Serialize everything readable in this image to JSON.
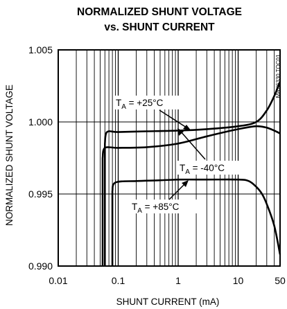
{
  "chart_data": {
    "type": "line",
    "title_line1": "NORMALIZED SHUNT VOLTAGE",
    "title_line2": "vs. SHUNT CURRENT",
    "xlabel": "SHUNT CURRENT (mA)",
    "ylabel": "NORMALIZED SHUNT VOLTAGE",
    "x_scale": "log",
    "xlim": [
      0.01,
      50
    ],
    "ylim": [
      0.99,
      1.005
    ],
    "x_ticks": [
      {
        "value": 0.01,
        "label": "0.01"
      },
      {
        "value": 0.1,
        "label": "0.1"
      },
      {
        "value": 1,
        "label": "1"
      },
      {
        "value": 10,
        "label": "10"
      },
      {
        "value": 50,
        "label": "50"
      }
    ],
    "y_ticks": [
      {
        "value": 1.005,
        "label": "1.005"
      },
      {
        "value": 1.0,
        "label": "1.000"
      },
      {
        "value": 0.995,
        "label": "0.995"
      },
      {
        "value": 0.99,
        "label": "0.990"
      }
    ],
    "grid": true,
    "watermark": "MAX6330 TOC01",
    "series": [
      {
        "name": "TA = +25°C",
        "x": [
          0.06,
          0.06,
          0.065,
          0.1,
          0.3,
          1,
          3,
          10,
          20,
          30,
          40,
          50
        ],
        "y": [
          0.99,
          0.9985,
          0.9993,
          0.9993,
          0.99935,
          0.9994,
          0.9995,
          0.9997,
          1.0,
          1.0008,
          1.0018,
          1.0028
        ]
      },
      {
        "name": "TA = -40°C",
        "x": [
          0.055,
          0.055,
          0.06,
          0.1,
          0.3,
          1,
          3,
          10,
          20,
          30,
          40,
          50
        ],
        "y": [
          0.99,
          0.9975,
          0.9982,
          0.9982,
          0.99825,
          0.9985,
          0.999,
          0.9995,
          0.9997,
          0.9996,
          0.9994,
          0.9992
        ]
      },
      {
        "name": "TA = +85°C",
        "x": [
          0.08,
          0.08,
          0.09,
          0.2,
          0.5,
          1,
          3,
          10,
          15,
          20,
          25,
          30,
          40,
          50
        ],
        "y": [
          0.99,
          0.9952,
          0.9958,
          0.9959,
          0.99595,
          0.996,
          0.996,
          0.996,
          0.9959,
          0.9955,
          0.995,
          0.9943,
          0.9928,
          0.9908
        ]
      }
    ],
    "annotations": [
      {
        "prefix": "T",
        "sub": "A",
        "suffix": " = +25°C"
      },
      {
        "prefix": "T",
        "sub": "A",
        "suffix": " = -40°C"
      },
      {
        "prefix": "T",
        "sub": "A",
        "suffix": " = +85°C"
      }
    ]
  }
}
